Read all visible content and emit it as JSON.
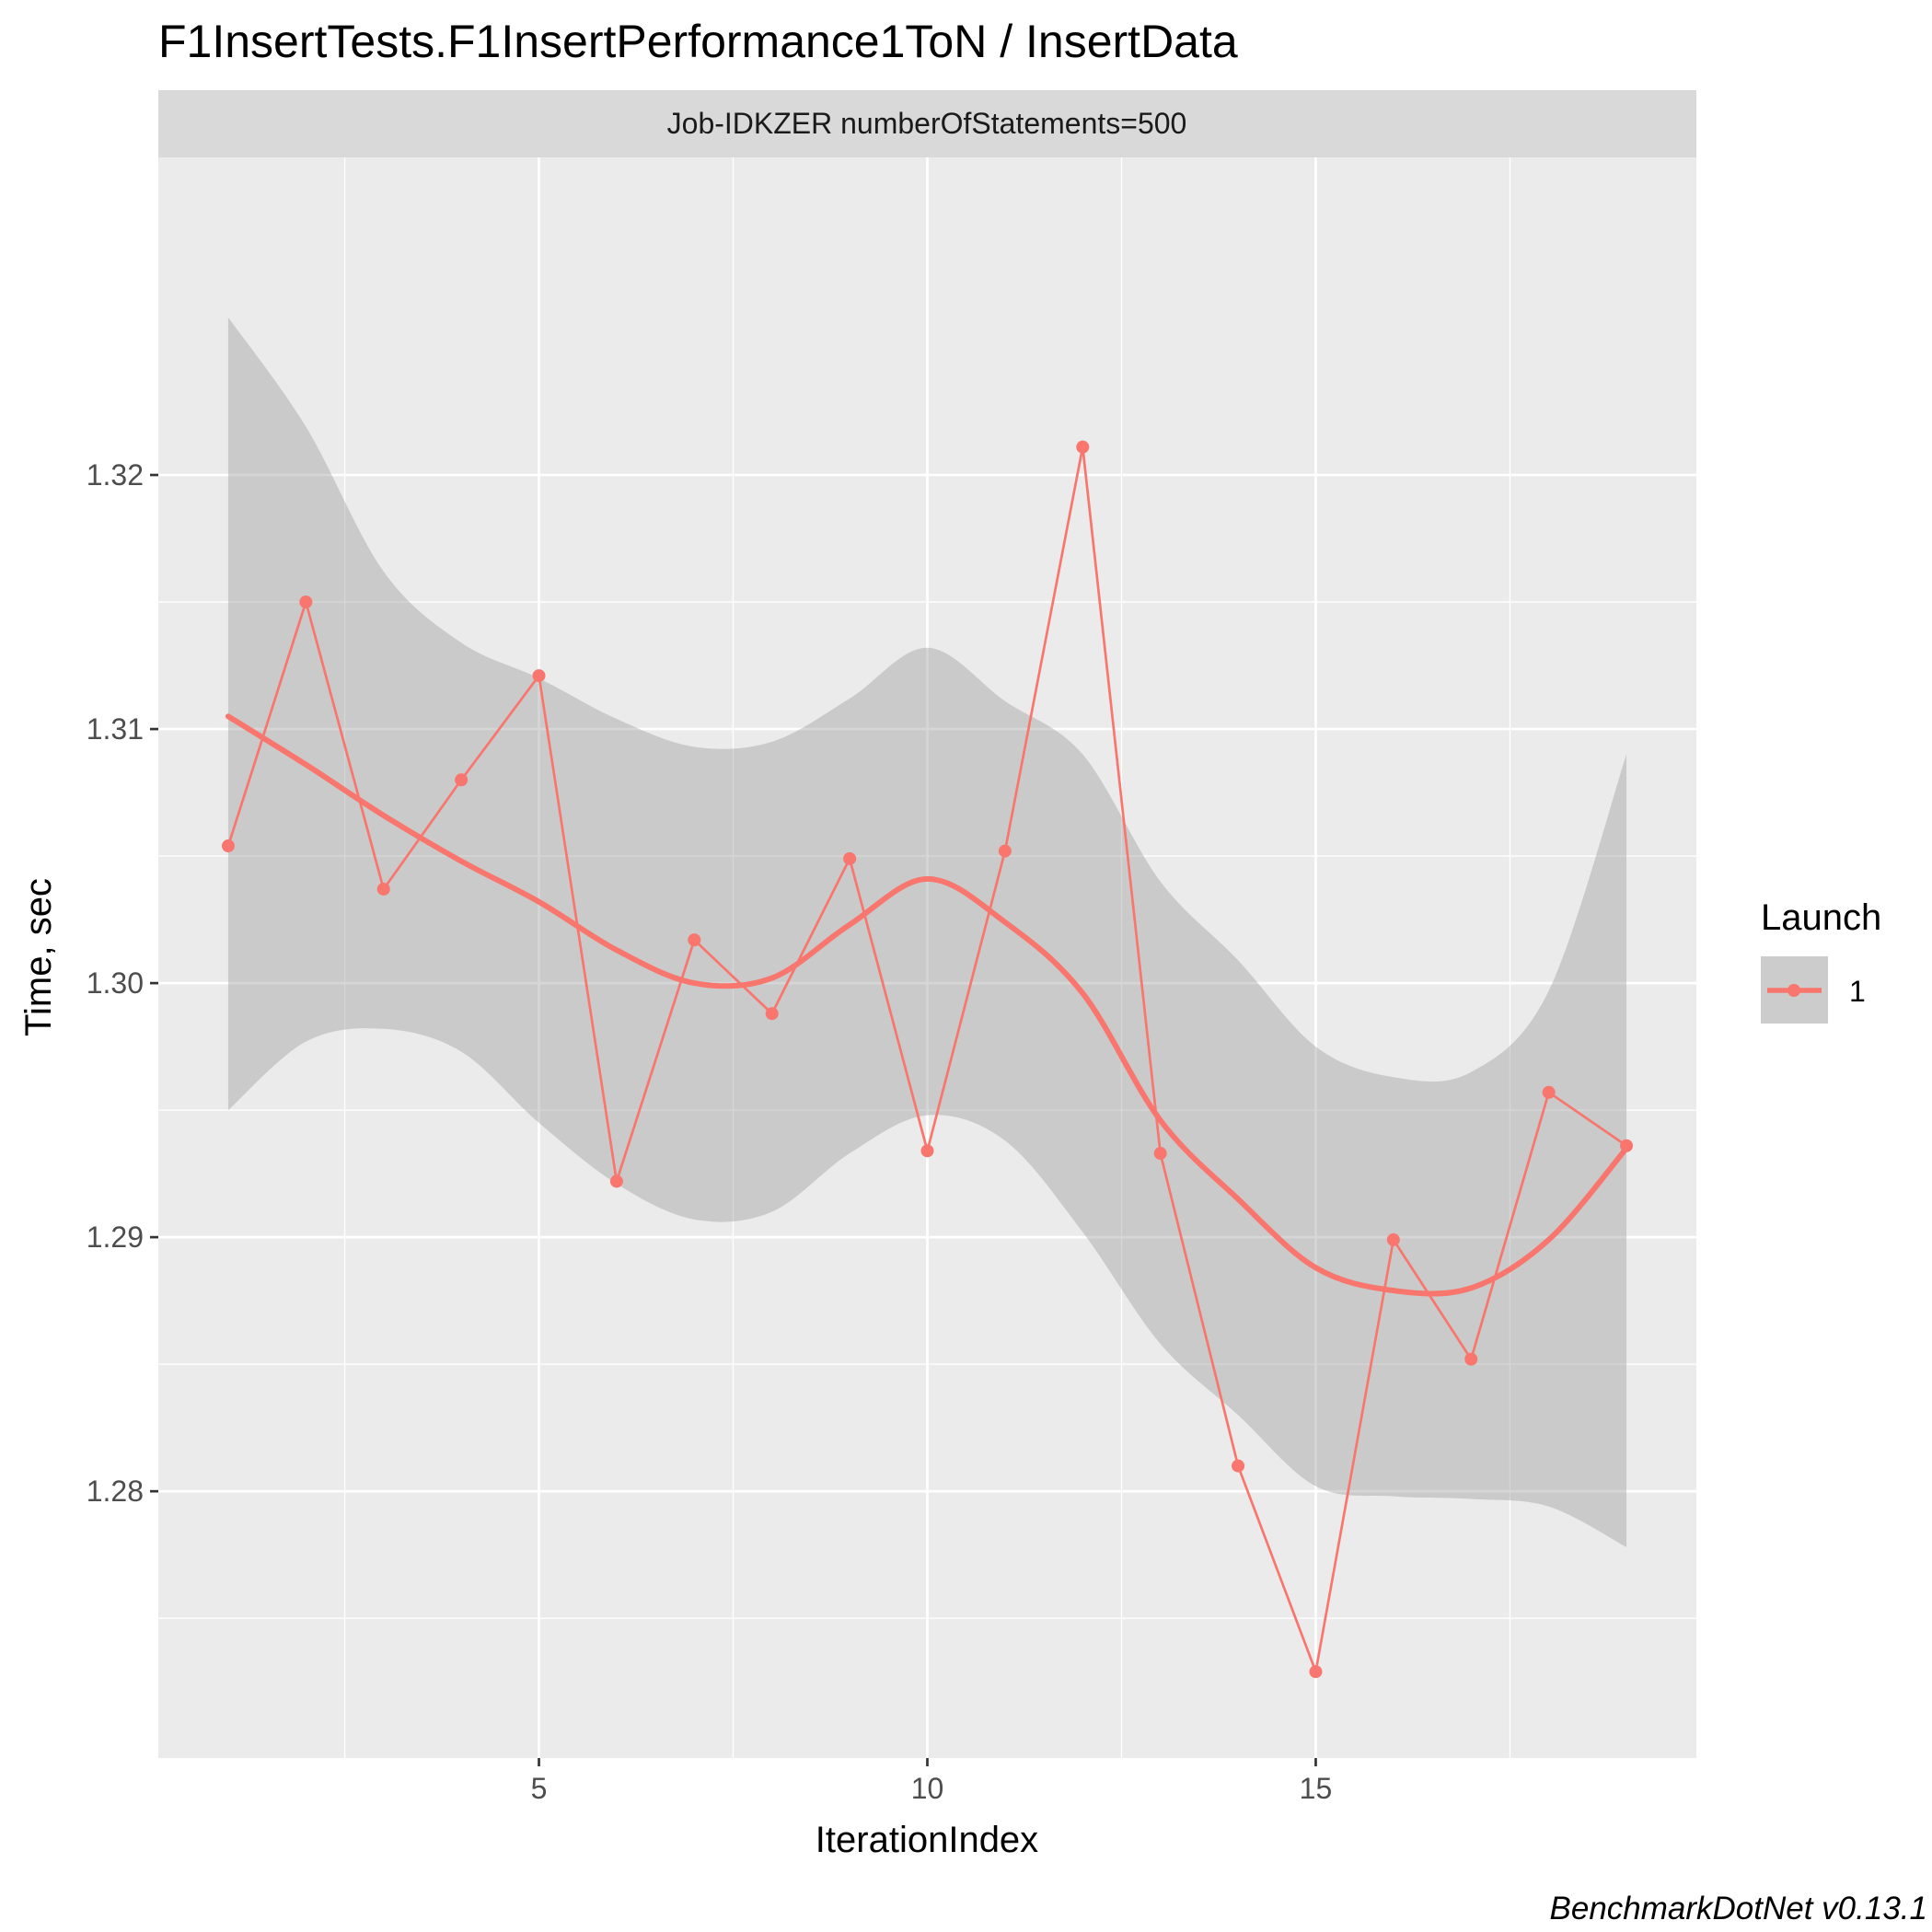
{
  "chart_data": {
    "type": "line",
    "title": "F1InsertTests.F1InsertPerformance1ToN / InsertData",
    "facet_label": "Job-IDKZER numberOfStatements=500",
    "xlabel": "IterationIndex",
    "ylabel": "Time, sec",
    "xlim": [
      0.1,
      19.9
    ],
    "ylim": [
      1.2695,
      1.3325
    ],
    "x_ticks": [
      5,
      10,
      15
    ],
    "x_tick_labels": [
      "5",
      "10",
      "15"
    ],
    "x_minor_ticks": [
      2.5,
      7.5,
      12.5,
      17.5
    ],
    "y_ticks": [
      1.28,
      1.29,
      1.3,
      1.31,
      1.32
    ],
    "y_tick_labels": [
      "1.28",
      "1.29",
      "1.30",
      "1.31",
      "1.32"
    ],
    "y_minor_ticks": [
      1.275,
      1.285,
      1.295,
      1.305,
      1.315
    ],
    "grid": true,
    "legend": {
      "title": "Launch",
      "position": "right",
      "entries": [
        "1"
      ]
    },
    "series": [
      {
        "name": "1",
        "color": "#f8766d",
        "x": [
          1,
          2,
          3,
          4,
          5,
          6,
          7,
          8,
          9,
          10,
          11,
          12,
          13,
          14,
          15,
          16,
          17,
          18,
          19
        ],
        "values": [
          1.3054,
          1.315,
          1.3037,
          1.308,
          1.3121,
          1.2922,
          1.3017,
          1.2988,
          1.3049,
          1.2934,
          1.3052,
          1.3211,
          1.2933,
          1.281,
          1.2729,
          1.2899,
          1.2852,
          1.2957,
          1.2936
        ]
      }
    ],
    "smooth": {
      "method": "loess",
      "color": "#f8766d",
      "x": [
        1,
        2,
        3,
        4,
        5,
        6,
        7,
        8,
        9,
        10,
        11,
        12,
        13,
        14,
        15,
        16,
        17,
        18,
        19
      ],
      "fit": [
        1.3105,
        1.3086,
        1.3066,
        1.3048,
        1.3032,
        1.3013,
        1.3,
        1.3002,
        1.3023,
        1.3041,
        1.3024,
        1.2996,
        1.2946,
        1.2915,
        1.2888,
        1.2879,
        1.288,
        1.2899,
        1.2935
      ],
      "upper": [
        1.3262,
        1.3219,
        1.3162,
        1.3134,
        1.312,
        1.3104,
        1.3093,
        1.3095,
        1.3112,
        1.3132,
        1.3111,
        1.309,
        1.304,
        1.3009,
        1.2975,
        1.2963,
        1.2965,
        1.2997,
        1.309
      ],
      "lower": [
        1.295,
        1.2977,
        1.2982,
        1.2973,
        1.2945,
        1.2921,
        1.2907,
        1.291,
        1.2933,
        1.2948,
        1.2938,
        1.2902,
        1.2858,
        1.283,
        1.2802,
        1.2798,
        1.2797,
        1.2794,
        1.2778
      ]
    },
    "caption": "BenchmarkDotNet v0.13.1"
  }
}
